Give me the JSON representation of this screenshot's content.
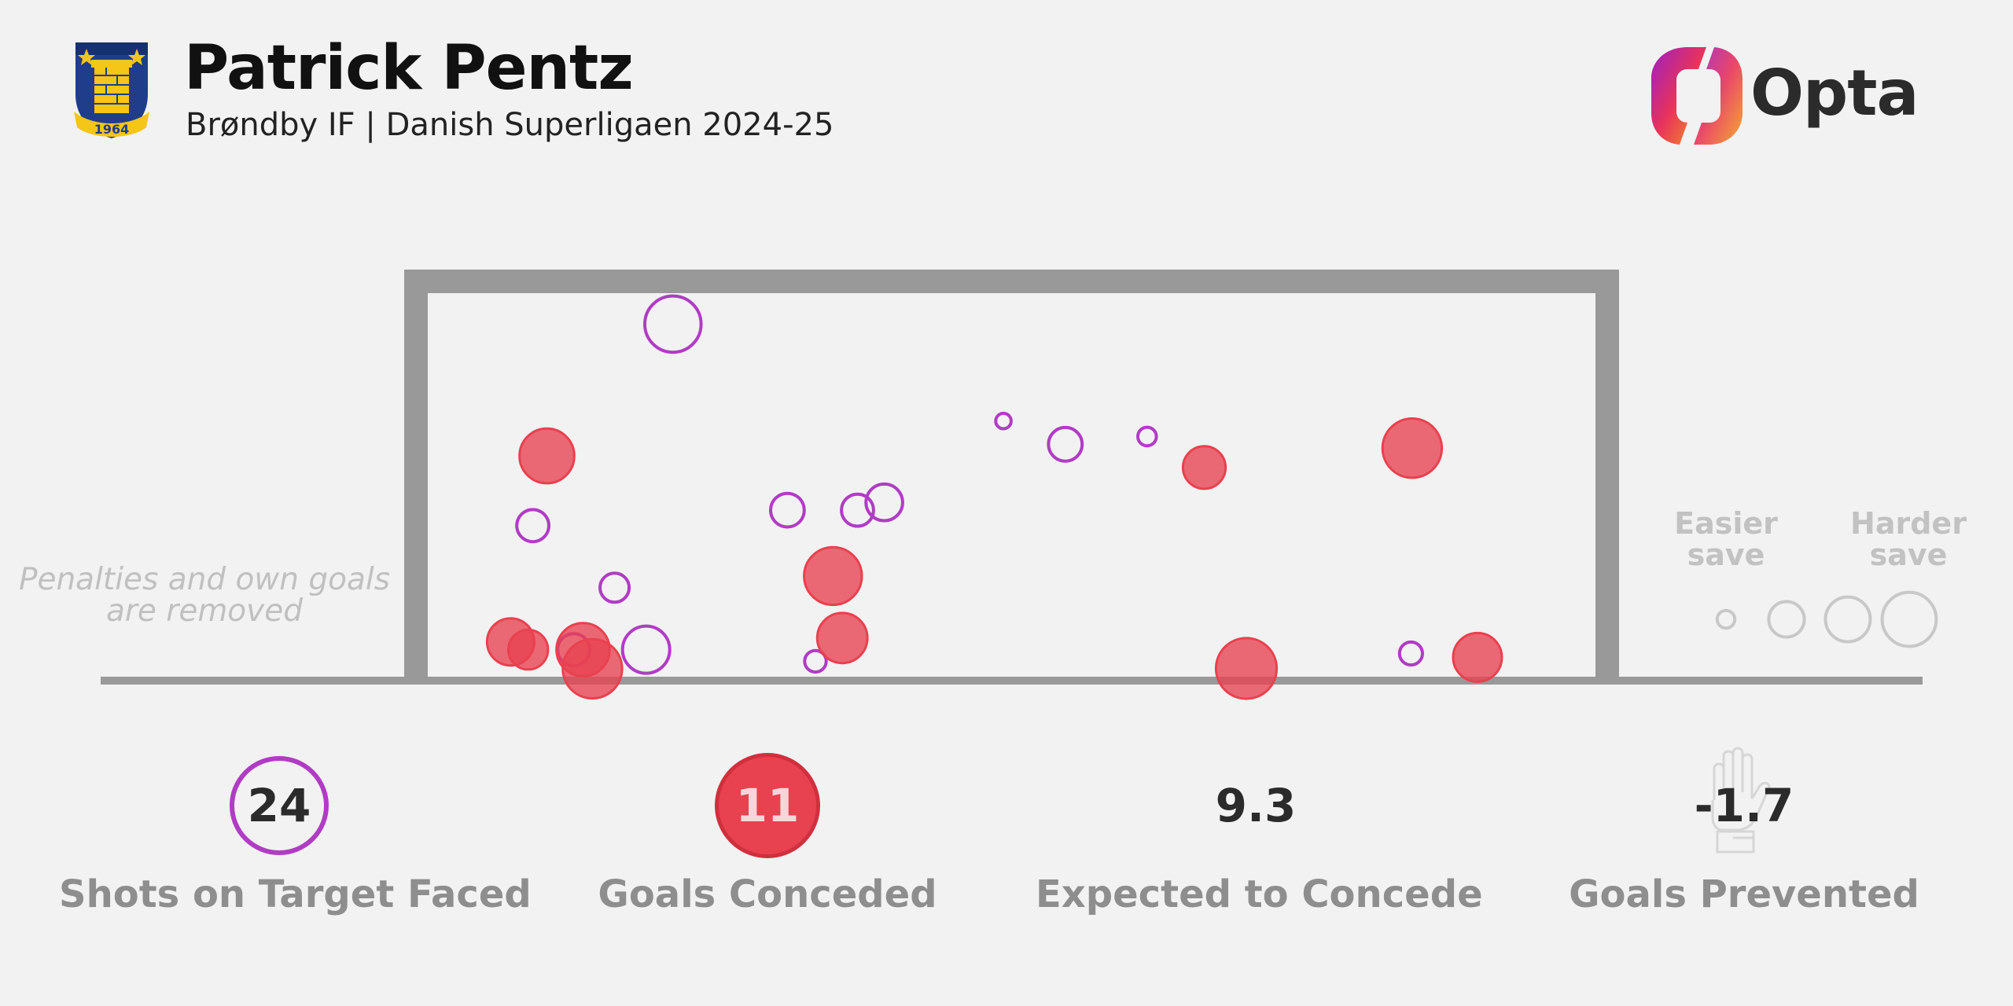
{
  "header": {
    "player_name": "Patrick Pentz",
    "subtitle": "Brøndby IF | Danish Superligaen 2024-25",
    "crest_year": "1964",
    "brand": "Opta"
  },
  "note": "Penalties and own goals are removed",
  "legend": {
    "easier": "Easier save",
    "harder": "Harder save"
  },
  "stats": [
    {
      "value": "24",
      "label": "Shots on Target Faced",
      "icon": "ring-purple"
    },
    {
      "value": "11",
      "label": "Goals Conceded",
      "icon": "disc-red"
    },
    {
      "value": "9.3",
      "label": "Expected to Concede",
      "icon": "none"
    },
    {
      "value": "-1.7",
      "label": "Goals Prevented",
      "icon": "glove-icon"
    }
  ],
  "colors": {
    "background": "#f2f2f2",
    "goal_frame": "#999999",
    "save": "#b03cc4",
    "goal": "#e8414f",
    "legend": "#c8c8c8"
  },
  "chart_data": {
    "type": "scatter",
    "title": "",
    "xlim": [
      0,
      1
    ],
    "ylim": [
      0,
      1
    ],
    "series": [
      {
        "name": "",
        "outcome": "saved",
        "points": [
          {
            "x": 0.21,
            "y": 0.92,
            "difficulty": 0.62
          },
          {
            "x": 0.09,
            "y": 0.4,
            "difficulty": 0.3
          },
          {
            "x": 0.16,
            "y": 0.24,
            "difficulty": 0.26
          },
          {
            "x": 0.187,
            "y": 0.08,
            "difficulty": 0.5
          },
          {
            "x": 0.125,
            "y": 0.08,
            "difficulty": 0.3
          },
          {
            "x": 0.308,
            "y": 0.44,
            "difficulty": 0.32
          },
          {
            "x": 0.368,
            "y": 0.44,
            "difficulty": 0.3
          },
          {
            "x": 0.391,
            "y": 0.46,
            "difficulty": 0.36
          },
          {
            "x": 0.493,
            "y": 0.67,
            "difficulty": 0.08
          },
          {
            "x": 0.546,
            "y": 0.61,
            "difficulty": 0.32
          },
          {
            "x": 0.616,
            "y": 0.63,
            "difficulty": 0.12
          },
          {
            "x": 0.842,
            "y": 0.07,
            "difficulty": 0.18
          },
          {
            "x": 0.332,
            "y": 0.05,
            "difficulty": 0.16
          }
        ]
      },
      {
        "name": "",
        "outcome": "goal",
        "points": [
          {
            "x": 0.102,
            "y": 0.58,
            "difficulty": 0.6
          },
          {
            "x": 0.071,
            "y": 0.1,
            "difficulty": 0.5
          },
          {
            "x": 0.086,
            "y": 0.08,
            "difficulty": 0.4
          },
          {
            "x": 0.133,
            "y": 0.08,
            "difficulty": 0.58
          },
          {
            "x": 0.141,
            "y": 0.03,
            "difficulty": 0.66
          },
          {
            "x": 0.347,
            "y": 0.27,
            "difficulty": 0.64
          },
          {
            "x": 0.355,
            "y": 0.11,
            "difficulty": 0.54
          },
          {
            "x": 0.665,
            "y": 0.55,
            "difficulty": 0.44
          },
          {
            "x": 0.701,
            "y": 0.01,
            "difficulty": 0.68
          },
          {
            "x": 0.843,
            "y": 0.6,
            "difficulty": 0.66
          },
          {
            "x": 0.899,
            "y": 0.06,
            "difficulty": 0.52
          }
        ]
      }
    ],
    "legend": {
      "placement": "right",
      "sizes": [
        0.15,
        0.45,
        0.6,
        0.75
      ]
    }
  }
}
